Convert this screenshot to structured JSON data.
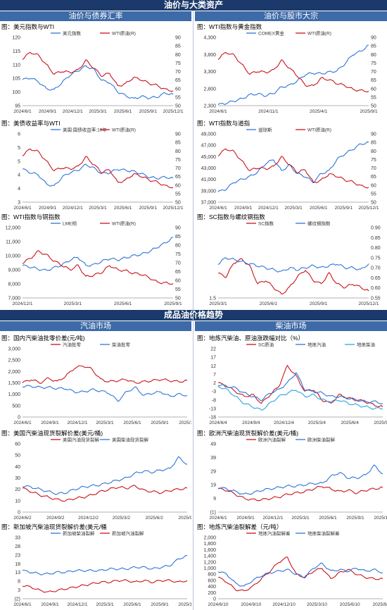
{
  "sections": {
    "top_title": "油价与大类资产",
    "top_left": "油价与债券汇率",
    "top_right": "油价与股市大宗",
    "bottom_title": "成品油价格趋势",
    "bottom_left": "汽油市场",
    "bottom_right": "柴油市场"
  },
  "colors": {
    "blue": "#2e75d6",
    "red": "#c8141e",
    "banner": "#1b3a6b",
    "sub": "#3d6aa8"
  },
  "chart_data": [
    {
      "id": "c1",
      "type": "line",
      "title": "图：美元指数与WTI",
      "x_ticks": [
        "2024/6/1",
        "2024/9/1",
        "2024/12/1",
        "2025/3/1",
        "2025/6/1",
        "2025/9/1",
        "2025/12/1"
      ],
      "y_left": {
        "ticks": [
          "95",
          "100",
          "105",
          "110",
          "115",
          "120"
        ],
        "range": [
          95,
          120
        ]
      },
      "y_right": {
        "ticks": [
          "50",
          "55",
          "60",
          "65",
          "70",
          "75",
          "80",
          "85",
          "90"
        ],
        "range": [
          50,
          90
        ]
      },
      "series": [
        {
          "name": "美元指数",
          "axis": "left",
          "color": "#2e75d6",
          "values": [
            104.5,
            105.2,
            103.8,
            101.2,
            100.8,
            103.5,
            106.2,
            107.8,
            109.5,
            108.3,
            104.2,
            103.5,
            100.1,
            98.7,
            97.5,
            98.4,
            97.8,
            98.2,
            99.6,
            99.1
          ]
        },
        {
          "name": "WTI原油(R)",
          "axis": "right",
          "color": "#c8141e",
          "values": [
            77.5,
            81.2,
            79.5,
            74.0,
            68.5,
            70.2,
            69.5,
            70.8,
            76.5,
            72.0,
            67.5,
            69.0,
            61.5,
            62.8,
            66.5,
            65.2,
            63.0,
            61.8,
            59.5,
            58.7
          ]
        }
      ]
    },
    {
      "id": "c2",
      "type": "line",
      "title": "图：WTI指数与黄金指数",
      "x_ticks": [
        "2024/6/1",
        "2024/11/1",
        "2025/4/1",
        "2025/9/1"
      ],
      "y_left": {
        "ticks": [
          "2,300",
          "2,800",
          "3,300",
          "3,800",
          "4,300"
        ],
        "range": [
          2300,
          4500
        ]
      },
      "y_right": {
        "ticks": [
          "50",
          "55",
          "60",
          "65",
          "70",
          "75",
          "80",
          "85",
          "90"
        ],
        "range": [
          50,
          90
        ]
      },
      "series": [
        {
          "name": "COMEX黄金",
          "axis": "left",
          "color": "#2e75d6",
          "values": [
            2330,
            2380,
            2450,
            2520,
            2650,
            2680,
            2620,
            2700,
            2900,
            2950,
            3100,
            3300,
            3350,
            3330,
            3380,
            3420,
            3650,
            3950,
            4050,
            4250
          ]
        },
        {
          "name": "WTI原油(R)",
          "axis": "right",
          "color": "#c8141e",
          "values": [
            77.5,
            81.2,
            79.5,
            74.0,
            68.5,
            70.2,
            69.5,
            70.8,
            76.5,
            72.0,
            67.5,
            62.0,
            61.5,
            66.0,
            65.2,
            63.0,
            61.8,
            59.5,
            58.8,
            58.5
          ]
        }
      ]
    },
    {
      "id": "c3",
      "type": "line",
      "title": "图：美债收益率与WTI",
      "x_ticks": [
        "2024/6/1",
        "2024/9/1",
        "2024/12/1",
        "2025/3/1",
        "2025/6/1",
        "2025/9/1",
        "2025/12/1"
      ],
      "y_left": {
        "ticks": [
          "3",
          "4",
          "4",
          "5",
          "5",
          "6"
        ],
        "range": [
          3,
          6
        ]
      },
      "y_right": {
        "ticks": [
          "50",
          "55",
          "60",
          "65",
          "70",
          "75",
          "80",
          "85",
          "90"
        ],
        "range": [
          50,
          90
        ]
      },
      "series": [
        {
          "name": "美国:国债收益率:10年",
          "axis": "left",
          "color": "#2e75d6",
          "values": [
            4.45,
            4.3,
            4.2,
            3.8,
            3.7,
            4.1,
            4.3,
            4.4,
            4.65,
            4.5,
            4.25,
            4.3,
            4.45,
            4.4,
            4.35,
            4.25,
            4.1,
            4.05,
            4.1,
            4.05
          ]
        },
        {
          "name": "WTI原油(R)",
          "axis": "right",
          "color": "#c8141e",
          "values": [
            77.5,
            81.2,
            79.5,
            74.0,
            68.5,
            70.2,
            69.5,
            70.8,
            76.5,
            72.0,
            67.5,
            69.0,
            61.5,
            62.8,
            66.5,
            65.2,
            63.0,
            61.8,
            59.5,
            58.7
          ]
        }
      ]
    },
    {
      "id": "c4",
      "type": "line",
      "title": "图：WTI指数与道指",
      "x_ticks": [
        "2024/6/1",
        "2024/9/1",
        "2024/12/1",
        "2025/3/1",
        "2025/6/1",
        "2025/9/1",
        "2025/12/1"
      ],
      "y_left": {
        "ticks": [
          "37,000",
          "39,000",
          "41,000",
          "43,000",
          "45,000",
          "47,000",
          "49,000"
        ],
        "range": [
          37000,
          49000
        ]
      },
      "y_right": {
        "ticks": [
          "50",
          "55",
          "60",
          "65",
          "70",
          "75",
          "80",
          "85",
          "90"
        ],
        "range": [
          50,
          90
        ]
      },
      "series": [
        {
          "name": "道琼斯",
          "axis": "left",
          "color": "#2e75d6",
          "values": [
            38800,
            39300,
            40500,
            41000,
            41500,
            42300,
            43800,
            44500,
            42500,
            43500,
            42000,
            41500,
            40500,
            42000,
            42500,
            44500,
            45500,
            46300,
            47200,
            47500
          ]
        },
        {
          "name": "WTI原油(R)",
          "axis": "right",
          "color": "#c8141e",
          "values": [
            77.5,
            81.2,
            79.5,
            74.0,
            68.5,
            70.2,
            69.5,
            70.8,
            76.5,
            72.0,
            67.5,
            69.0,
            61.5,
            62.8,
            66.5,
            65.2,
            63.0,
            61.8,
            59.5,
            58.7
          ]
        }
      ]
    },
    {
      "id": "c5",
      "type": "line",
      "title": "图：WTI指数与铜指数",
      "x_ticks": [
        "2024/12/1",
        "2025/3/1",
        "2025/6/1",
        "2025/9/1"
      ],
      "y_left": {
        "ticks": [
          "7,000",
          "8,000",
          "9,000",
          "10,000",
          "11,000",
          "12,000"
        ],
        "range": [
          7000,
          12000
        ]
      },
      "y_right": {
        "ticks": [
          "50",
          "55",
          "60",
          "65",
          "70",
          "75",
          "80",
          "85",
          "90"
        ],
        "range": [
          50,
          90
        ]
      },
      "series": [
        {
          "name": "LME铜",
          "axis": "left",
          "color": "#2e75d6",
          "values": [
            9300,
            9200,
            9050,
            8950,
            9150,
            9350,
            9700,
            9900,
            9300,
            9350,
            9600,
            9800,
            9700,
            9850,
            10000,
            10100,
            10300,
            10600,
            10900,
            11300
          ]
        },
        {
          "name": "WTI原油(R)",
          "axis": "right",
          "color": "#c8141e",
          "values": [
            70.0,
            72.5,
            76.5,
            74.5,
            71.0,
            68.5,
            66.0,
            68.5,
            62.0,
            63.0,
            64.5,
            68.5,
            66.0,
            65.5,
            64.0,
            63.5,
            61.5,
            59.0,
            58.5,
            58.2
          ]
        }
      ]
    },
    {
      "id": "c6",
      "type": "line",
      "title": "图：SC指数与螺纹钢指数",
      "x_ticks": [
        "2025/3/1",
        "2025/6/1",
        "2025/9/1",
        "2025/12/1"
      ],
      "y_left": {
        "ticks": [
          "1.5",
          "",
          "",
          "",
          "",
          "",
          ""
        ],
        "range": [
          1.4,
          2.4
        ]
      },
      "y_right": {
        "ticks": [
          "0.55",
          "0.60",
          "0.65",
          "0.70",
          "0.75",
          "0.80",
          "0.85",
          "0.90"
        ],
        "range": [
          0.55,
          0.9
        ]
      },
      "series": [
        {
          "name": "SC指数",
          "axis": "left",
          "color": "#c8141e",
          "values": [
            1.75,
            1.7,
            1.9,
            1.95,
            1.85,
            1.6,
            1.65,
            1.55,
            1.45,
            1.55,
            1.7,
            1.8,
            1.65,
            1.6,
            1.75,
            1.6,
            1.55,
            1.6,
            1.55,
            1.5
          ]
        },
        {
          "name": "螺纹钢指数",
          "axis": "right",
          "color": "#2e75d6",
          "values": [
            0.72,
            0.75,
            0.74,
            0.73,
            0.72,
            0.71,
            0.7,
            0.69,
            0.68,
            0.7,
            0.69,
            0.7,
            0.71,
            0.7,
            0.71,
            0.72,
            0.7,
            0.7,
            0.69,
            0.72
          ]
        }
      ]
    },
    {
      "id": "c7",
      "type": "line",
      "title": "图：国内汽柴油批零价差(元/吨)",
      "x_ticks": [
        "2024/6/1",
        "2024/9/1",
        "2024/12/1",
        "2025/3/1",
        "2025/6/1",
        "2025/9/1",
        "2025/12"
      ],
      "y_left": {
        "ticks": [
          "0",
          "500",
          "1,000",
          "1,500",
          "2,000",
          "2,500",
          "3,000"
        ],
        "range": [
          0,
          3000
        ]
      },
      "series": [
        {
          "name": "汽油批零",
          "axis": "left",
          "color": "#c8141e",
          "values": [
            1500,
            1650,
            1500,
            1700,
            1550,
            1800,
            2150,
            2250,
            2100,
            1650,
            1550,
            1600,
            1650,
            1500,
            1550,
            1600,
            1650,
            1600,
            1550,
            1600
          ]
        },
        {
          "name": "柴油批零",
          "axis": "left",
          "color": "#2e75d6",
          "values": [
            1350,
            1350,
            1300,
            1300,
            1250,
            1250,
            1100,
            1100,
            1200,
            1150,
            1050,
            700,
            1100,
            1300,
            950,
            1050,
            1100,
            900,
            1000,
            950
          ]
        }
      ]
    },
    {
      "id": "c8",
      "type": "line",
      "title": "图：地炼汽柴油、原油涨跌幅对比（%）",
      "x_ticks": [
        "2024/6/4",
        "2024/9/4",
        "2024/12/4",
        "2025/3/4",
        "2025/6/4",
        "2025/9/4"
      ],
      "y_left": {
        "ticks": [
          "-18",
          "-13",
          "-8",
          "-3",
          "2",
          "7",
          "12",
          "17",
          "22"
        ],
        "range": [
          -18,
          22
        ]
      },
      "series": [
        {
          "name": "SC原油",
          "axis": "left",
          "color": "#c8141e",
          "values": [
            2,
            0,
            -3,
            -6,
            -5,
            -10,
            -5,
            0,
            12,
            6,
            -3,
            -2,
            -8,
            -10,
            -5,
            -7,
            -8,
            -9,
            -11,
            -12
          ]
        },
        {
          "name": "地炼汽油",
          "axis": "left",
          "color": "#2e75d6",
          "values": [
            1,
            0,
            -1,
            -4,
            -6,
            -8,
            -4,
            -2,
            2,
            8,
            -2,
            -3,
            -4,
            -6,
            -6,
            -7,
            -8,
            -9,
            -9,
            -10
          ]
        },
        {
          "name": "地炼柴油",
          "axis": "left",
          "color": "#2aa6e0",
          "values": [
            0,
            -2,
            -6,
            -10,
            -12,
            -14,
            -10,
            -6,
            -4,
            -2,
            -6,
            -5,
            -8,
            -9,
            -8,
            -10,
            -11,
            -12,
            -13,
            -13
          ]
        }
      ]
    },
    {
      "id": "c9",
      "type": "line",
      "title": "图：美国汽柴油现货裂解价差(美元/桶)",
      "x_ticks": [
        "2024/6/2",
        "2024/9/2",
        "2024/12/2",
        "2025/3/2",
        "2025/6/2",
        "2025/9/2"
      ],
      "y_left": {
        "ticks": [
          "0",
          "10",
          "20",
          "30",
          "40",
          "50",
          "60"
        ],
        "range": [
          0,
          60
        ]
      },
      "series": [
        {
          "name": "美国汽油现货裂解",
          "axis": "left",
          "color": "#c8141e",
          "values": [
            21,
            18,
            15,
            13,
            11,
            10,
            12,
            13,
            15,
            18,
            20,
            22,
            21,
            23,
            19,
            18,
            17,
            19,
            20,
            21
          ]
        },
        {
          "name": "美国柴油现货裂解",
          "axis": "left",
          "color": "#2e75d6",
          "values": [
            23,
            22,
            20,
            18,
            16,
            17,
            20,
            22,
            23,
            24,
            26,
            28,
            30,
            34,
            36,
            35,
            37,
            38,
            48,
            42
          ]
        }
      ]
    },
    {
      "id": "c10",
      "type": "line",
      "title": "图：欧洲汽柴油现货裂解价差(美元/桶)",
      "x_ticks": [
        "2024/6/1",
        "2024/9/1",
        "2024/12/1",
        "2025/3/1",
        "2025/6/1",
        "2025/9/1",
        "2025/12/"
      ],
      "y_left": {
        "ticks": [
          "(1)",
          "9",
          "19",
          "29",
          "39",
          "49"
        ],
        "range": [
          -1,
          49
        ]
      },
      "series": [
        {
          "name": "欧洲汽油裂解",
          "axis": "left",
          "color": "#c8141e",
          "values": [
            16,
            15,
            12,
            9,
            8,
            8,
            9,
            10,
            12,
            13,
            14,
            16,
            18,
            16,
            14,
            15,
            13,
            15,
            16,
            17
          ]
        },
        {
          "name": "欧洲柴油裂解",
          "axis": "left",
          "color": "#2e75d6",
          "values": [
            17,
            16,
            14,
            12,
            13,
            15,
            16,
            17,
            18,
            18,
            19,
            20,
            20,
            25,
            28,
            24,
            24,
            26,
            33,
            27
          ]
        }
      ]
    },
    {
      "id": "c11",
      "type": "line",
      "title": "图：新加坡汽柴油现货裂解价差(美元/桶",
      "x_ticks": [
        "2024/6/1",
        "2024/9/1",
        "2024/12/1",
        "2025/3/1",
        "2025/6/1",
        "2025/9/1",
        "2025/12/"
      ],
      "y_left": {
        "ticks": [
          "(2)",
          "3",
          "8",
          "13",
          "18",
          "23",
          "28",
          "33"
        ],
        "range": [
          -2,
          35
        ]
      },
      "series": [
        {
          "name": "新加坡柴油裂解",
          "axis": "left",
          "color": "#2e75d6",
          "values": [
            15,
            14,
            13,
            13,
            14,
            14,
            15,
            15,
            15,
            15,
            16,
            16,
            16,
            17,
            17,
            16,
            17,
            18,
            22,
            24
          ]
        },
        {
          "name": "新加坡汽油裂解",
          "axis": "left",
          "color": "#c8141e",
          "values": [
            6,
            5,
            3,
            2,
            3,
            4,
            5,
            6,
            7,
            8,
            8,
            9,
            9,
            8,
            9,
            8,
            9,
            9,
            8,
            9
          ]
        }
      ]
    },
    {
      "id": "c12",
      "type": "line",
      "title": "图：地炼汽柴油裂解差（元/吨）",
      "x_ticks": [
        "2024/6/10",
        "2024/9/10",
        "2024/12/10",
        "2025/3/10",
        "2025/6/10",
        "2025/9/10"
      ],
      "y_left": {
        "ticks": [
          "0",
          "200",
          "400",
          "600",
          "800",
          "1,000",
          "1,200",
          "1,400",
          "1,600",
          "1,800",
          "2,000"
        ],
        "range": [
          0,
          2000
        ]
      },
      "series": [
        {
          "name": "地炼汽油裂解差",
          "axis": "left",
          "color": "#c8141e",
          "values": [
            700,
            550,
            300,
            250,
            400,
            650,
            900,
            1200,
            1350,
            800,
            700,
            900,
            1000,
            650,
            850,
            950,
            800,
            700,
            650,
            650
          ]
        },
        {
          "name": "地炼柴油裂解差",
          "axis": "left",
          "color": "#2e75d6",
          "values": [
            900,
            800,
            500,
            400,
            600,
            750,
            850,
            900,
            950,
            800,
            700,
            1000,
            1150,
            900,
            950,
            900,
            1000,
            900,
            950,
            850
          ]
        }
      ]
    }
  ]
}
